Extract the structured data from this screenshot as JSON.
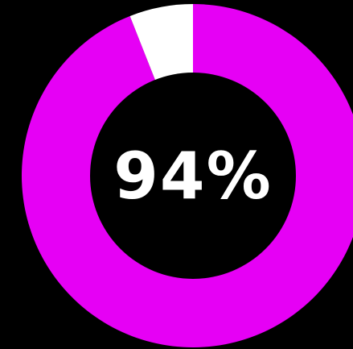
{
  "chart_data": {
    "type": "pie",
    "title": "",
    "center_label": "94%",
    "slices": [
      {
        "label": "",
        "value": 94,
        "color": "#e600f5"
      },
      {
        "label": "",
        "value": 6,
        "color": "#ffffff"
      }
    ]
  },
  "colors": {
    "background": "#000000",
    "primary": "#e600f5",
    "remainder": "#ffffff",
    "hole": "#000000",
    "text": "#ffffff"
  }
}
